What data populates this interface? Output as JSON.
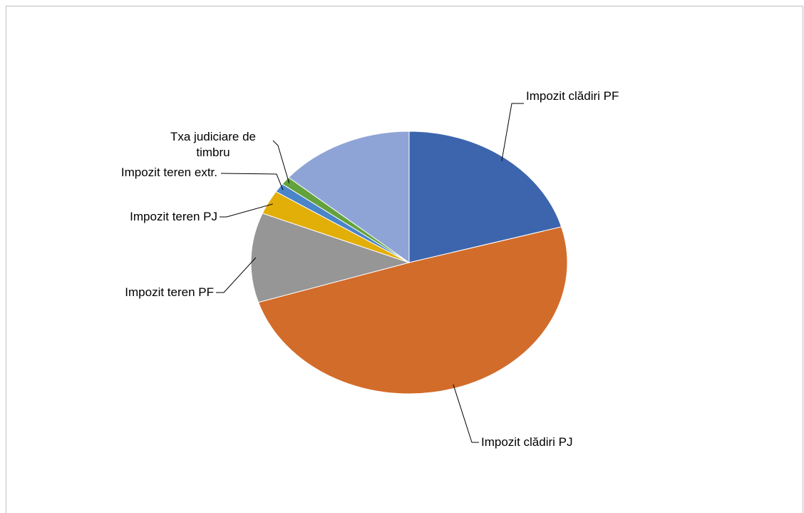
{
  "chart_data": {
    "type": "pie",
    "title": "",
    "slices": [
      {
        "label": "Impozit clădiri PF",
        "value": 20.2,
        "color": "#3c65ad"
      },
      {
        "label": "Impozit clădiri PJ",
        "value": 48.5,
        "color": "#d26c2a"
      },
      {
        "label": "Impozit teren PF",
        "value": 10.8,
        "color": "#969696"
      },
      {
        "label": "Impozit teren PJ",
        "value": 2.9,
        "color": "#e2ae08"
      },
      {
        "label": "Impozit teren extr.",
        "value": 1.1,
        "color": "#4a84c9"
      },
      {
        "label": "Txa judiciare de timbru",
        "value": 1.0,
        "color": "#63a23c"
      },
      {
        "label": "",
        "value": 13.5,
        "color": "#8fa4d6"
      }
    ],
    "legend": "none",
    "data_labels": "outside with leader lines"
  }
}
